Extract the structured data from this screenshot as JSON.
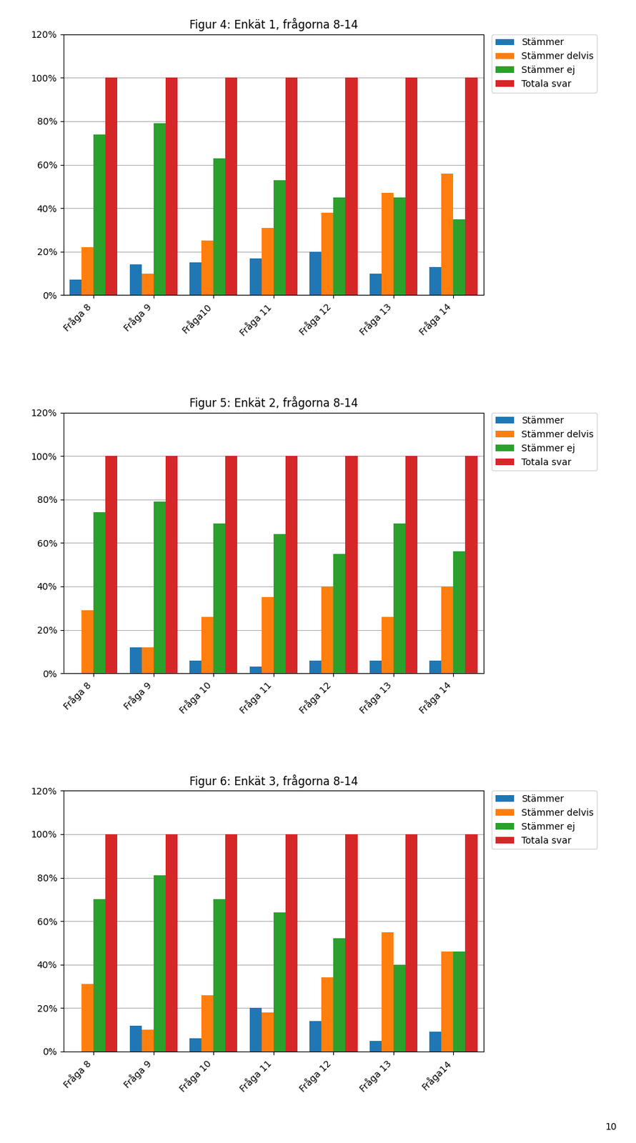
{
  "chart_data": [
    {
      "type": "bar",
      "title": "Figur 4: Enkät 1, frågorna 8-14",
      "categories": [
        "Fråga 8",
        "Fråga 9",
        "Fråga10",
        "Fråga 11",
        "Fråga 12",
        "Fråga 13",
        "Fråga 14"
      ],
      "series": [
        {
          "name": "Stämmer",
          "values": [
            0.07,
            0.14,
            0.15,
            0.17,
            0.2,
            0.1,
            0.13
          ]
        },
        {
          "name": "Stämmer delvis",
          "values": [
            0.22,
            0.1,
            0.25,
            0.31,
            0.38,
            0.47,
            0.56
          ]
        },
        {
          "name": "Stämmer ej",
          "values": [
            0.74,
            0.79,
            0.63,
            0.53,
            0.45,
            0.45,
            0.35
          ]
        },
        {
          "name": "Totala svar",
          "values": [
            1.0,
            1.0,
            1.0,
            1.0,
            1.0,
            1.0,
            1.0
          ]
        }
      ],
      "ylim": [
        0,
        1.2
      ],
      "yticks": [
        {
          "value": 0.0,
          "label": "0%"
        },
        {
          "value": 0.2,
          "label": "20%"
        },
        {
          "value": 0.4,
          "label": "40%"
        },
        {
          "value": 0.6,
          "label": "60%"
        },
        {
          "value": 0.8,
          "label": "80%"
        },
        {
          "value": 1.0,
          "label": "100%"
        },
        {
          "value": 1.2,
          "label": "120%"
        }
      ],
      "grid": true,
      "legend": "upper left"
    },
    {
      "type": "bar",
      "title": "Figur 5: Enkät 2, frågorna 8-14",
      "categories": [
        "Fråga 8",
        "Fråga 9",
        "Fråga 10",
        "Fråga 11",
        "Fråga 12",
        "Fråga 13",
        "Fråga 14"
      ],
      "series": [
        {
          "name": "Stämmer",
          "values": [
            0.0,
            0.12,
            0.06,
            0.03,
            0.06,
            0.06,
            0.06
          ]
        },
        {
          "name": "Stämmer delvis",
          "values": [
            0.29,
            0.12,
            0.26,
            0.35,
            0.4,
            0.26,
            0.4
          ]
        },
        {
          "name": "Stämmer ej",
          "values": [
            0.74,
            0.79,
            0.69,
            0.64,
            0.55,
            0.69,
            0.56
          ]
        },
        {
          "name": "Totala svar",
          "values": [
            1.0,
            1.0,
            1.0,
            1.0,
            1.0,
            1.0,
            1.0
          ]
        }
      ],
      "ylim": [
        0,
        1.2
      ],
      "yticks": [
        {
          "value": 0.0,
          "label": "0%"
        },
        {
          "value": 0.2,
          "label": "20%"
        },
        {
          "value": 0.4,
          "label": "40%"
        },
        {
          "value": 0.6,
          "label": "60%"
        },
        {
          "value": 0.8,
          "label": "80%"
        },
        {
          "value": 1.0,
          "label": "100%"
        },
        {
          "value": 1.2,
          "label": "120%"
        }
      ],
      "grid": true,
      "legend": "upper left"
    },
    {
      "type": "bar",
      "title": "Figur 6: Enkät 3, frågorna 8-14",
      "categories": [
        "Fråga 8",
        "Fråga 9",
        "Fråga 10",
        "Fråga 11",
        "Fråga 12",
        "Fråga 13",
        "Fråga14"
      ],
      "series": [
        {
          "name": "Stämmer",
          "values": [
            0.0,
            0.12,
            0.06,
            0.2,
            0.14,
            0.05,
            0.09
          ]
        },
        {
          "name": "Stämmer delvis",
          "values": [
            0.31,
            0.1,
            0.26,
            0.18,
            0.34,
            0.55,
            0.46
          ]
        },
        {
          "name": "Stämmer ej",
          "values": [
            0.7,
            0.81,
            0.7,
            0.64,
            0.52,
            0.4,
            0.46
          ]
        },
        {
          "name": "Totala svar",
          "values": [
            1.0,
            1.0,
            1.0,
            1.0,
            1.0,
            1.0,
            1.0
          ]
        }
      ],
      "ylim": [
        0,
        1.2
      ],
      "yticks": [
        {
          "value": 0.0,
          "label": "0%"
        },
        {
          "value": 0.2,
          "label": "20%"
        },
        {
          "value": 0.4,
          "label": "40%"
        },
        {
          "value": 0.6,
          "label": "60%"
        },
        {
          "value": 0.8,
          "label": "80%"
        },
        {
          "value": 1.0,
          "label": "100%"
        },
        {
          "value": 1.2,
          "label": "120%"
        }
      ],
      "grid": true,
      "legend": "upper left",
      "annotations": [
        "10"
      ]
    }
  ]
}
